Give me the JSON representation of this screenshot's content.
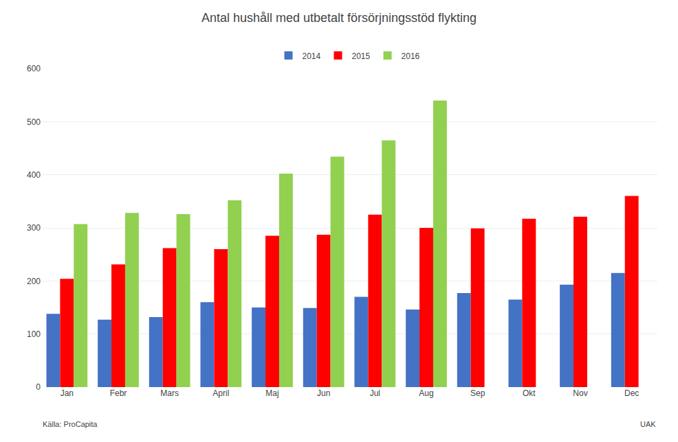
{
  "chart_data": {
    "type": "bar",
    "title": "Antal hushåll med utbetalt försörjningsstöd flykting",
    "categories": [
      "Jan",
      "Febr",
      "Mars",
      "April",
      "Maj",
      "Jun",
      "Jul",
      "Aug",
      "Sep",
      "Okt",
      "Nov",
      "Dec"
    ],
    "series": [
      {
        "name": "2014",
        "color": "#4472C4",
        "values": [
          138,
          127,
          132,
          160,
          150,
          149,
          170,
          146,
          177,
          165,
          193,
          215
        ]
      },
      {
        "name": "2015",
        "color": "#FF0000",
        "values": [
          204,
          231,
          262,
          260,
          285,
          287,
          325,
          300,
          299,
          317,
          321,
          360
        ]
      },
      {
        "name": "2016",
        "color": "#92D050",
        "values": [
          307,
          328,
          326,
          352,
          402,
          434,
          465,
          540,
          null,
          null,
          null,
          null
        ]
      }
    ],
    "ylim": [
      0,
      600
    ],
    "yticks": [
      0,
      100,
      200,
      300,
      400,
      500,
      600
    ],
    "grid": true,
    "legend": "top",
    "annotations": [
      "Källa: ProCapita",
      "UAK"
    ]
  }
}
